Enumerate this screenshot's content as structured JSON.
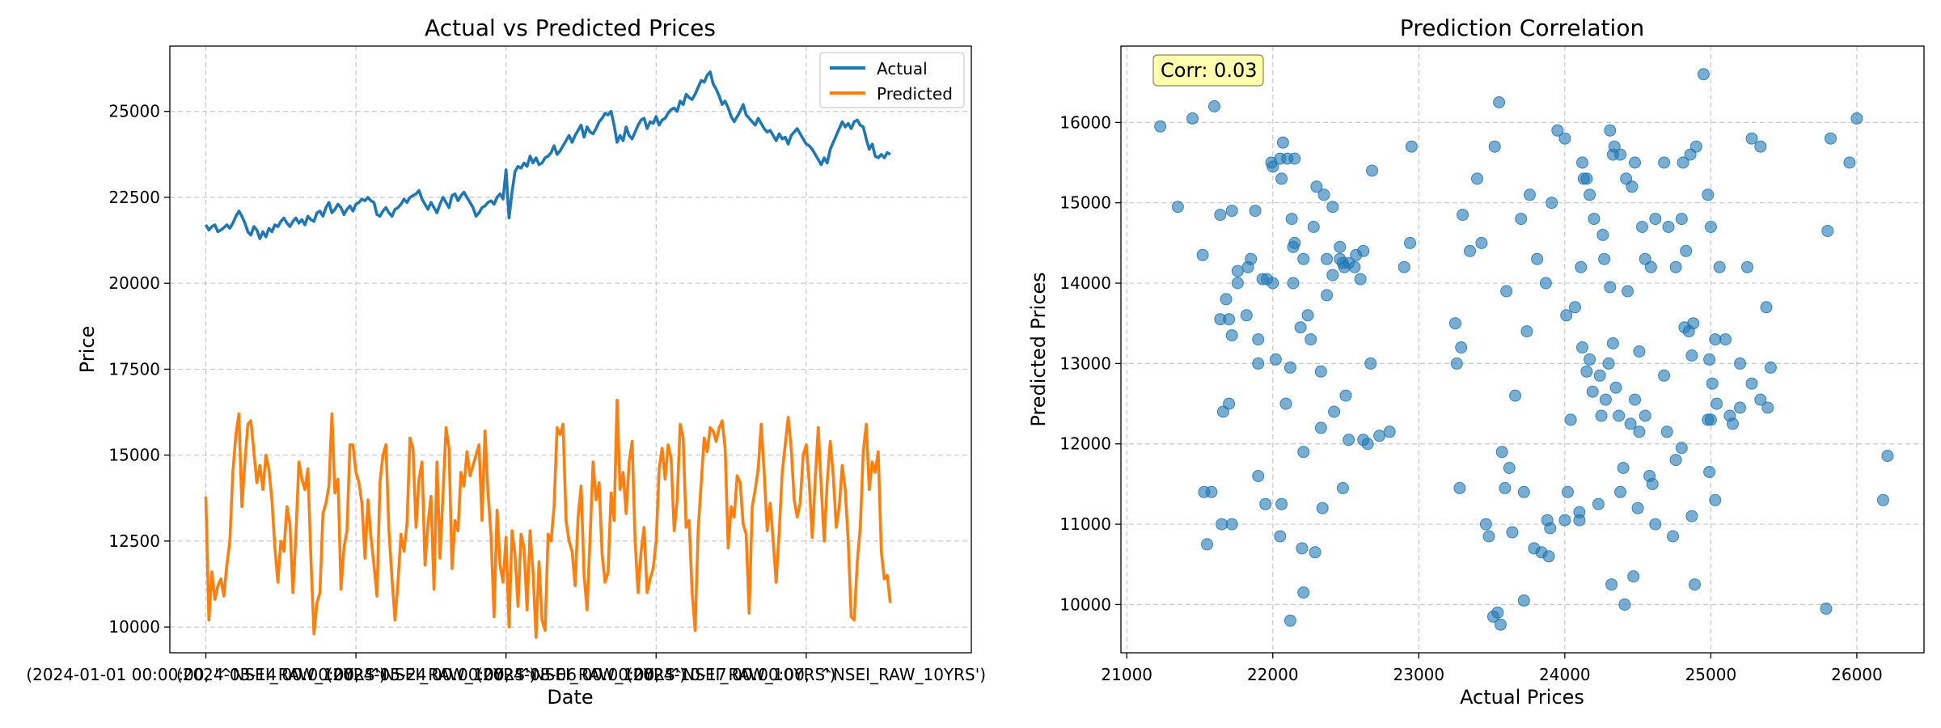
{
  "chart_data": [
    {
      "type": "line",
      "title": "Actual vs Predicted Prices",
      "xlabel": "Date",
      "ylabel": "Price",
      "ylim": [
        9250,
        26900
      ],
      "yticks": [
        10000,
        12500,
        15000,
        17500,
        20000,
        22500,
        25000
      ],
      "ytick_labels": [
        "10000",
        "12500",
        "15000",
        "17500",
        "20000",
        "22500",
        "25000"
      ],
      "xticks": [
        0,
        50,
        100,
        150,
        200
      ],
      "xtick_labels": [
        "(2024-01-01 00:00:00, '^NSEI_RAW_10YRS')",
        "(2024-03-14 00:00:00, '^NSEI_RAW_10YRS')",
        "(2024-05-24 00:00:00, '^NSEI_RAW_10YRS')",
        "(2024-08-06 00:00:00, '^NSEI_RAW_10YRS')",
        "(2024-10-17 00:00:00, '^NSEI_RAW_10YRS')"
      ],
      "xlim": [
        -12,
        255
      ],
      "grid": true,
      "legend": "upper right",
      "series": [
        {
          "name": "Actual",
          "color": "#1f77b4",
          "values": [
            21700,
            21550,
            21650,
            21700,
            21500,
            21550,
            21620,
            21700,
            21600,
            21750,
            21950,
            22100,
            21950,
            21750,
            21500,
            21400,
            21650,
            21550,
            21300,
            21500,
            21350,
            21600,
            21500,
            21700,
            21650,
            21800,
            21900,
            21750,
            21650,
            21800,
            21900,
            21750,
            21850,
            21700,
            21950,
            21850,
            21800,
            22050,
            22100,
            21950,
            22200,
            22350,
            22050,
            22150,
            22300,
            22200,
            22000,
            22150,
            22250,
            22100,
            22300,
            22350,
            22450,
            22400,
            22500,
            22400,
            22350,
            22000,
            21950,
            22100,
            22200,
            22050,
            21950,
            22150,
            22200,
            22300,
            22450,
            22350,
            22500,
            22550,
            22600,
            22700,
            22450,
            22300,
            22150,
            22350,
            22200,
            22050,
            22300,
            22500,
            22350,
            22200,
            22550,
            22600,
            22400,
            22550,
            22650,
            22500,
            22350,
            22200,
            21950,
            22050,
            22200,
            22250,
            22350,
            22400,
            22300,
            22500,
            22600,
            22450,
            23300,
            21900,
            22650,
            23250,
            23400,
            23350,
            23500,
            23400,
            23700,
            23500,
            23650,
            23450,
            23500,
            23650,
            23700,
            23800,
            24000,
            23750,
            23850,
            24000,
            24150,
            24300,
            24100,
            24300,
            24450,
            24600,
            24250,
            24550,
            24400,
            24350,
            24500,
            24700,
            24800,
            24950,
            24900,
            25000,
            24600,
            24100,
            24300,
            24150,
            24550,
            24300,
            24200,
            24400,
            24600,
            24750,
            24800,
            24500,
            24700,
            24650,
            24850,
            24600,
            24750,
            24800,
            24950,
            25050,
            25100,
            25000,
            25300,
            25200,
            25500,
            25400,
            25350,
            25500,
            25700,
            25900,
            25850,
            26050,
            26150,
            25800,
            25650,
            25450,
            25200,
            25300,
            25100,
            24850,
            24700,
            24850,
            25000,
            25200,
            24900,
            24800,
            24700,
            24600,
            24800,
            24650,
            24500,
            24400,
            24450,
            24300,
            24150,
            24350,
            24200,
            24250,
            24050,
            24300,
            24400,
            24500,
            24350,
            24200,
            24050,
            24000,
            23900,
            23750,
            23600,
            23450,
            23650,
            23500,
            23900,
            24100,
            24300,
            24500,
            24700,
            24550,
            24650,
            24500,
            24700,
            24750,
            24600,
            24550,
            24200,
            23900,
            24050,
            23700,
            23650,
            23750,
            23650,
            23800,
            23750
          ]
        },
        {
          "name": "Predicted",
          "color": "#ff7f0e",
          "values": [
            13800,
            10200,
            11600,
            10800,
            11200,
            11400,
            10900,
            11800,
            12500,
            14500,
            15600,
            16200,
            13500,
            14800,
            15900,
            16000,
            15100,
            14200,
            14700,
            14000,
            15000,
            14600,
            13700,
            12300,
            11300,
            12500,
            12200,
            13500,
            13000,
            11000,
            12700,
            14800,
            14300,
            14000,
            14600,
            12000,
            9800,
            10700,
            11000,
            13300,
            13600,
            14100,
            16200,
            13900,
            14300,
            11100,
            12300,
            12800,
            15300,
            15300,
            14500,
            14200,
            13600,
            12000,
            13700,
            12600,
            11800,
            10900,
            14200,
            15000,
            15300,
            12800,
            11400,
            10200,
            11300,
            12700,
            12200,
            13000,
            15500,
            15200,
            12900,
            14300,
            14800,
            11800,
            13000,
            13800,
            11100,
            14800,
            12000,
            13900,
            15800,
            15200,
            11700,
            13100,
            12800,
            14500,
            14100,
            15100,
            14400,
            14700,
            15000,
            15300,
            13100,
            15700,
            13900,
            12700,
            10300,
            13400,
            11800,
            11300,
            12600,
            10000,
            12800,
            12100,
            10600,
            12700,
            12300,
            10500,
            12800,
            11600,
            9700,
            11900,
            10200,
            9900,
            12700,
            12500,
            13500,
            15800,
            15600,
            15900,
            13100,
            12500,
            12200,
            11200,
            13200,
            14100,
            11500,
            10500,
            12600,
            14800,
            13700,
            14200,
            12100,
            11300,
            11600,
            13900,
            13100,
            16600,
            14000,
            14500,
            13300,
            14800,
            15400,
            12500,
            11000,
            12200,
            12900,
            11000,
            11400,
            11700,
            12500,
            14600,
            15200,
            14300,
            15300,
            14900,
            12800,
            13700,
            15900,
            15500,
            12900,
            13100,
            11000,
            9900,
            12800,
            14200,
            15500,
            15100,
            15800,
            15700,
            15400,
            15800,
            16000,
            15200,
            12300,
            13500,
            13200,
            14400,
            14200,
            13000,
            12700,
            10400,
            13500,
            14000,
            14600,
            15900,
            14500,
            12800,
            13600,
            12500,
            11300,
            12800,
            14500,
            15300,
            16100,
            15200,
            13700,
            13200,
            13600,
            15000,
            15300,
            14200,
            12600,
            14300,
            15800,
            14100,
            12500,
            14200,
            15400,
            14400,
            12900,
            13500,
            14700,
            14000,
            12500,
            10300,
            10200,
            11900,
            12900,
            15100,
            15900,
            14000,
            14800,
            14500,
            15100,
            12200,
            11400,
            11500,
            10700
          ]
        }
      ]
    },
    {
      "type": "scatter",
      "title": "Prediction Correlation",
      "xlabel": "Actual Prices",
      "ylabel": "Predicted Prices",
      "xlim": [
        20960,
        26460
      ],
      "ylim": [
        9400,
        16950
      ],
      "xticks": [
        21000,
        22000,
        23000,
        24000,
        25000,
        26000
      ],
      "xtick_labels": [
        "21000",
        "22000",
        "23000",
        "24000",
        "25000",
        "26000"
      ],
      "yticks": [
        10000,
        11000,
        12000,
        13000,
        14000,
        15000,
        16000
      ],
      "ytick_labels": [
        "10000",
        "11000",
        "12000",
        "13000",
        "14000",
        "15000",
        "16000"
      ],
      "grid": true,
      "point_color": "#1f77b4",
      "annotation": "Corr: 0.03",
      "x": [
        21230,
        21450,
        21600,
        21350,
        21520,
        21640,
        21720,
        21850,
        21880,
        22000,
        22050,
        22100,
        22150,
        22070,
        21990,
        22130,
        22060,
        21680,
        21760,
        21930,
        21900,
        22150,
        22210,
        22370,
        22460,
        22480,
        22520,
        22570,
        22620,
        22410,
        22350,
        22300,
        22280,
        22140,
        22000,
        21960,
        21830,
        21760,
        21700,
        21640,
        21720,
        22140,
        22190,
        22260,
        22240,
        22370,
        22410,
        22460,
        22490,
        22560,
        22600,
        22680,
        22950,
        22940,
        22900,
        22730,
        22800,
        22020,
        21900,
        21820,
        21700,
        21660,
        21580,
        21530,
        21550,
        21650,
        21720,
        21900,
        21950,
        22060,
        22090,
        22120,
        22210,
        22330,
        22420,
        22520,
        22620,
        22650,
        22480,
        22340,
        22290,
        22200,
        22050,
        22120,
        22210,
        22330,
        22500,
        22670,
        23280,
        23250,
        23260,
        23290,
        23300,
        23350,
        23400,
        23430,
        23520,
        23550,
        23570,
        23600,
        23620,
        23700,
        23760,
        23810,
        23870,
        23910,
        23950,
        24000,
        24010,
        24040,
        24110,
        24120,
        24130,
        24150,
        24170,
        24200,
        24260,
        24270,
        24310,
        24330,
        24340,
        24380,
        24420,
        24460,
        24480,
        24530,
        24550,
        24590,
        24620,
        24680,
        24710,
        24760,
        24800,
        24810,
        24830,
        24860,
        24900,
        24950,
        24980,
        25000,
        25030,
        25060,
        25100,
        25200,
        25250,
        25280,
        25340,
        25380,
        25410,
        25800,
        25820,
        25950,
        26000,
        26180,
        26210,
        25000,
        24870,
        24880,
        24510,
        24550,
        24250,
        24100,
        24350,
        24400,
        24680,
        24300,
        24370,
        24480,
        24510,
        24280,
        24330,
        24170,
        24190,
        23740,
        23590,
        23840,
        24020,
        24240,
        24120,
        24070,
        24310,
        24450,
        24600,
        24700,
        24820,
        24850,
        24430,
        24500,
        24620,
        24740,
        24870,
        24980,
        25030,
        24990,
        25130,
        25200,
        25280,
        25340,
        25390,
        24990,
        24760,
        24800,
        24890,
        24470,
        24320,
        24410,
        23890,
        23640,
        23720,
        23560,
        23510,
        23540,
        23460,
        23900,
        24000,
        23480,
        23660,
        23720,
        23790,
        23880,
        24150,
        24100,
        24230,
        24380,
        24580,
        25010,
        25040,
        25150,
        25790
      ],
      "y": [
        15950,
        16050,
        16200,
        14950,
        14350,
        14850,
        14900,
        14300,
        14900,
        15450,
        15550,
        15550,
        15550,
        15750,
        15500,
        14800,
        15300,
        13800,
        14150,
        14050,
        13000,
        14500,
        14300,
        14300,
        14450,
        14250,
        14250,
        14350,
        14400,
        14950,
        15100,
        15200,
        14700,
        14450,
        14000,
        14050,
        14200,
        14000,
        13550,
        13550,
        13350,
        14000,
        13450,
        13300,
        13600,
        13850,
        14100,
        14300,
        14200,
        14200,
        14050,
        15400,
        15700,
        14500,
        14200,
        12100,
        12150,
        13050,
        13300,
        13600,
        12500,
        12400,
        11400,
        11400,
        10750,
        11000,
        11000,
        11600,
        11250,
        11250,
        12500,
        12950,
        11900,
        12200,
        12400,
        12050,
        12050,
        12000,
        11450,
        11200,
        10650,
        10700,
        10850,
        9800,
        10150,
        12900,
        12600,
        13000,
        11450,
        13500,
        13000,
        13200,
        14850,
        14400,
        15300,
        14500,
        15700,
        16250,
        11900,
        13900,
        11700,
        14800,
        15100,
        14300,
        14000,
        15000,
        15900,
        15800,
        13600,
        12300,
        14200,
        15500,
        15300,
        15300,
        15100,
        14800,
        14600,
        14300,
        15900,
        15600,
        15700,
        15600,
        15300,
        15200,
        15500,
        14700,
        14300,
        14200,
        14800,
        15500,
        14700,
        14200,
        14800,
        15500,
        14400,
        15600,
        15700,
        16600,
        15100,
        14700,
        13300,
        14200,
        13300,
        13000,
        14200,
        15800,
        15700,
        13700,
        12950,
        14650,
        15800,
        15500,
        16050,
        11300,
        11850,
        12300,
        11100,
        13500,
        12150,
        12350,
        12350,
        11050,
        12700,
        11700,
        12850,
        13000,
        12350,
        12550,
        13150,
        12550,
        13250,
        13050,
        12650,
        13400,
        11450,
        10650,
        11400,
        12850,
        13200,
        13700,
        13950,
        12250,
        11500,
        12150,
        13450,
        13400,
        13900,
        11200,
        11000,
        10850,
        13100,
        12300,
        11300,
        11650,
        12350,
        12450,
        12750,
        12550,
        12450,
        13050,
        11800,
        11950,
        10250,
        10350,
        10250,
        10000,
        10600,
        10900,
        10050,
        9750,
        9850,
        9900,
        11000,
        10950,
        11050,
        10850,
        12600,
        11400,
        10700,
        11050,
        12900,
        11150,
        11250,
        11400,
        11600,
        12750,
        12500,
        12250,
        9950
      ]
    }
  ]
}
